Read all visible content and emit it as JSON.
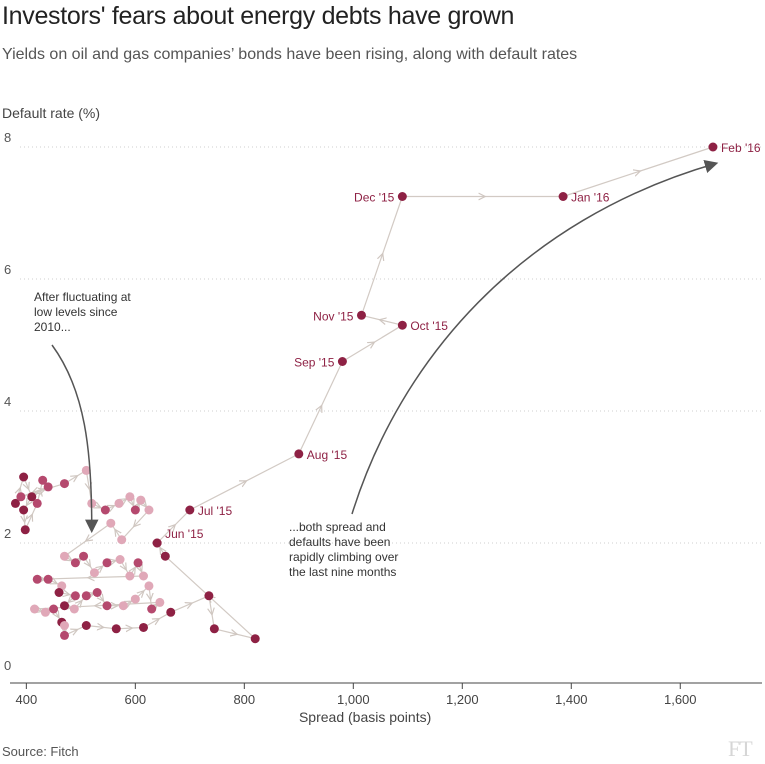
{
  "title": "Investors' fears about energy debts have grown",
  "subtitle": "Yields on oil and gas companies’ bonds have been rising, along with default rates",
  "source": "Source: Fitch",
  "logo": "FT",
  "colors": {
    "dark_dot": "#8e2144",
    "mid_dot": "#b5496e",
    "light_dot": "#e0a8b8",
    "path_line": "#d2cac4",
    "annotation_arrow": "#555555",
    "label_text": "#8e2144",
    "annotation_text": "#333333"
  },
  "chart_data": {
    "type": "scatter",
    "title": "Investors' fears about energy debts have grown",
    "subtitle": "Yields on oil and gas companies’ bonds have been rising, along with default rates",
    "xlabel": "Spread (basis points)",
    "ylabel": "Default rate (%)",
    "xlim": [
      370,
      1750
    ],
    "ylim": [
      0,
      8
    ],
    "xticks": [
      400,
      600,
      800,
      1000,
      1200,
      1400,
      1600
    ],
    "xtick_labels": [
      "400",
      "600",
      "800",
      "1,000",
      "1,200",
      "1,400",
      "1,600"
    ],
    "yticks": [
      0,
      2,
      4,
      6,
      8
    ],
    "ytick_labels": [
      "0",
      "2",
      "4",
      "6",
      "8"
    ],
    "grid": "horizontal dotted",
    "connected_path": true,
    "background_points": [
      {
        "x": 380,
        "y": 2.6,
        "shade": "dark"
      },
      {
        "x": 395,
        "y": 3.0,
        "shade": "dark"
      },
      {
        "x": 410,
        "y": 2.7,
        "shade": "dark"
      },
      {
        "x": 395,
        "y": 2.5,
        "shade": "dark"
      },
      {
        "x": 398,
        "y": 2.2,
        "shade": "dark"
      },
      {
        "x": 420,
        "y": 2.6,
        "shade": "mid"
      },
      {
        "x": 430,
        "y": 2.95,
        "shade": "mid"
      },
      {
        "x": 440,
        "y": 2.85,
        "shade": "mid"
      },
      {
        "x": 390,
        "y": 2.7,
        "shade": "mid"
      },
      {
        "x": 470,
        "y": 2.9,
        "shade": "mid"
      },
      {
        "x": 510,
        "y": 3.1,
        "shade": "light"
      },
      {
        "x": 520,
        "y": 2.6,
        "shade": "light"
      },
      {
        "x": 545,
        "y": 2.5,
        "shade": "mid"
      },
      {
        "x": 570,
        "y": 2.6,
        "shade": "light"
      },
      {
        "x": 590,
        "y": 2.7,
        "shade": "light"
      },
      {
        "x": 600,
        "y": 2.5,
        "shade": "mid"
      },
      {
        "x": 610,
        "y": 2.65,
        "shade": "light"
      },
      {
        "x": 625,
        "y": 2.5,
        "shade": "light"
      },
      {
        "x": 575,
        "y": 2.05,
        "shade": "light"
      },
      {
        "x": 555,
        "y": 2.3,
        "shade": "light"
      },
      {
        "x": 470,
        "y": 1.8,
        "shade": "light"
      },
      {
        "x": 490,
        "y": 1.7,
        "shade": "mid"
      },
      {
        "x": 505,
        "y": 1.8,
        "shade": "mid"
      },
      {
        "x": 525,
        "y": 1.55,
        "shade": "light"
      },
      {
        "x": 548,
        "y": 1.7,
        "shade": "mid"
      },
      {
        "x": 572,
        "y": 1.75,
        "shade": "light"
      },
      {
        "x": 590,
        "y": 1.5,
        "shade": "light"
      },
      {
        "x": 605,
        "y": 1.7,
        "shade": "mid"
      },
      {
        "x": 615,
        "y": 1.5,
        "shade": "light"
      },
      {
        "x": 420,
        "y": 1.45,
        "shade": "mid"
      },
      {
        "x": 440,
        "y": 1.45,
        "shade": "mid"
      },
      {
        "x": 465,
        "y": 1.35,
        "shade": "light"
      },
      {
        "x": 460,
        "y": 1.25,
        "shade": "dark"
      },
      {
        "x": 490,
        "y": 1.2,
        "shade": "mid"
      },
      {
        "x": 470,
        "y": 1.05,
        "shade": "dark"
      },
      {
        "x": 488,
        "y": 1.0,
        "shade": "light"
      },
      {
        "x": 510,
        "y": 1.2,
        "shade": "mid"
      },
      {
        "x": 530,
        "y": 1.25,
        "shade": "mid"
      },
      {
        "x": 548,
        "y": 1.05,
        "shade": "mid"
      },
      {
        "x": 578,
        "y": 1.05,
        "shade": "light"
      },
      {
        "x": 600,
        "y": 1.15,
        "shade": "light"
      },
      {
        "x": 625,
        "y": 1.35,
        "shade": "light"
      },
      {
        "x": 630,
        "y": 1.0,
        "shade": "mid"
      },
      {
        "x": 645,
        "y": 1.1,
        "shade": "light"
      },
      {
        "x": 415,
        "y": 1.0,
        "shade": "light"
      },
      {
        "x": 435,
        "y": 0.95,
        "shade": "light"
      },
      {
        "x": 450,
        "y": 1.0,
        "shade": "mid"
      },
      {
        "x": 465,
        "y": 0.8,
        "shade": "dark"
      },
      {
        "x": 470,
        "y": 0.75,
        "shade": "light"
      },
      {
        "x": 470,
        "y": 0.6,
        "shade": "mid"
      },
      {
        "x": 510,
        "y": 0.75,
        "shade": "dark"
      },
      {
        "x": 565,
        "y": 0.7,
        "shade": "dark"
      },
      {
        "x": 615,
        "y": 0.72,
        "shade": "dark"
      },
      {
        "x": 665,
        "y": 0.95,
        "shade": "dark"
      },
      {
        "x": 735,
        "y": 1.2,
        "shade": "dark"
      },
      {
        "x": 745,
        "y": 0.7,
        "shade": "dark"
      },
      {
        "x": 820,
        "y": 0.55,
        "shade": "dark"
      },
      {
        "x": 655,
        "y": 1.8,
        "shade": "dark"
      },
      {
        "x": 640,
        "y": 2.0,
        "shade": "dark"
      }
    ],
    "series": [
      {
        "name": "",
        "points": [
          {
            "x": 640,
            "y": 2.0,
            "label": "Jun '15"
          },
          {
            "x": 700,
            "y": 2.5,
            "label": "Jul '15"
          },
          {
            "x": 900,
            "y": 3.35,
            "label": "Aug '15"
          },
          {
            "x": 980,
            "y": 4.75,
            "label": "Sep '15"
          },
          {
            "x": 1090,
            "y": 5.3,
            "label": "Oct '15"
          },
          {
            "x": 1015,
            "y": 5.45,
            "label": "Nov '15"
          },
          {
            "x": 1090,
            "y": 7.25,
            "label": "Dec '15"
          },
          {
            "x": 1385,
            "y": 7.25,
            "label": "Jan '16"
          },
          {
            "x": 1660,
            "y": 8.0,
            "label": "Feb '16"
          }
        ]
      }
    ],
    "annotations": [
      {
        "lines": [
          "After fluctuating at",
          "low levels since",
          "2010..."
        ],
        "target": {
          "x": 520,
          "y": 2.1
        }
      },
      {
        "lines": [
          "...both spread and",
          "defaults have been",
          "rapidly climbing over",
          "the last nine months"
        ],
        "target": {
          "x": 1665,
          "y": 7.75
        }
      }
    ]
  }
}
